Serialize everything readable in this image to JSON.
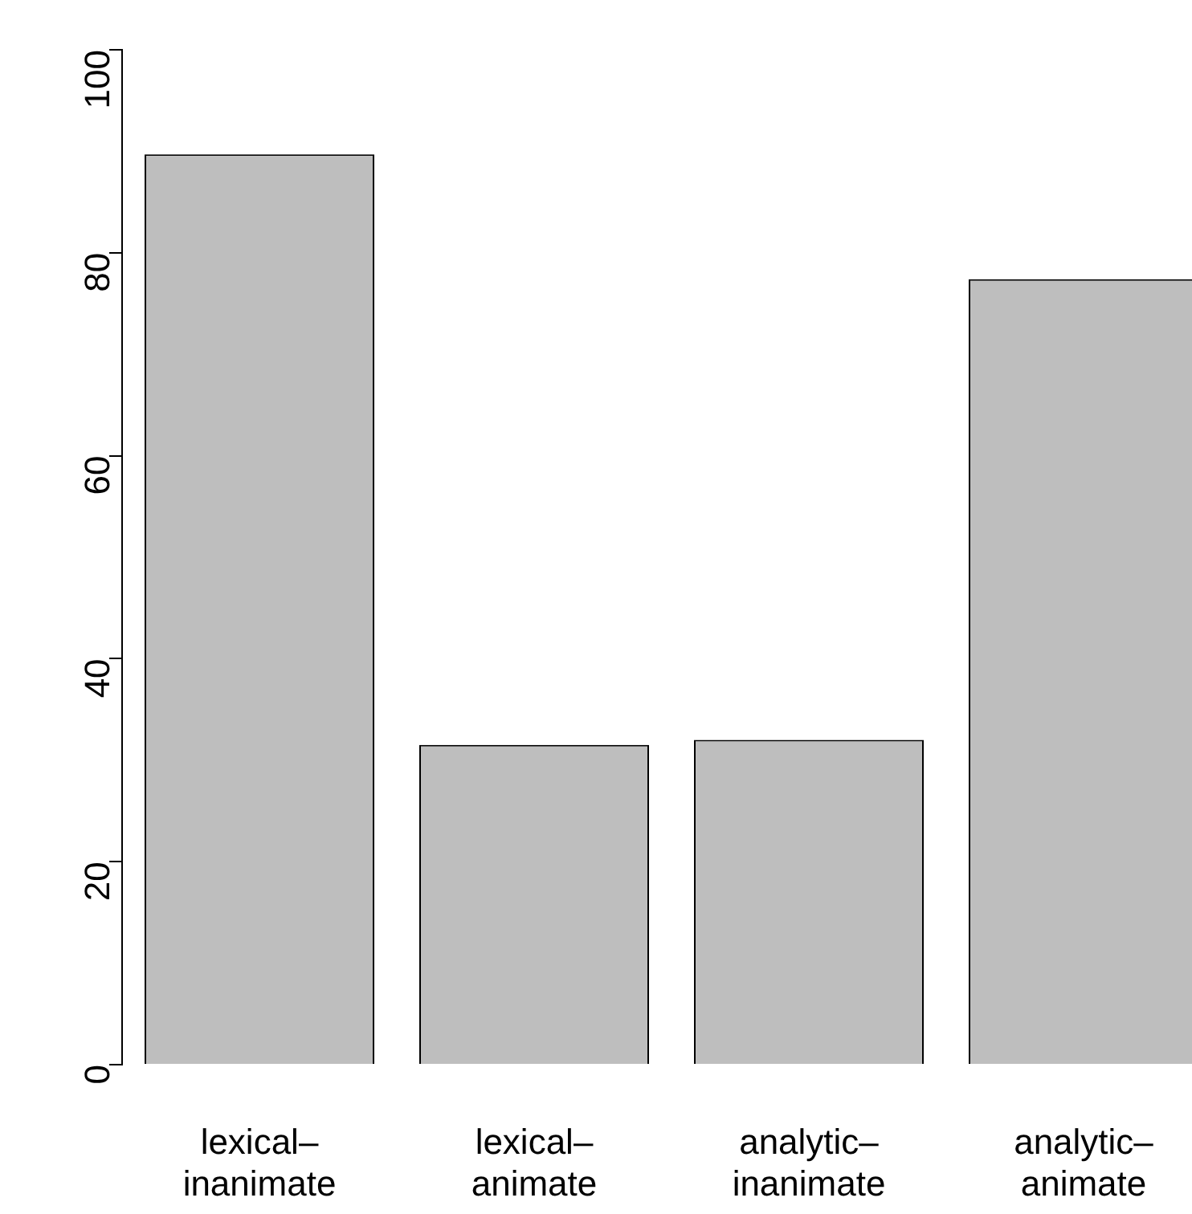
{
  "chart_data": {
    "type": "bar",
    "categories": [
      "lexical–inanimate",
      "lexical–animate",
      "analytic–inanimate",
      "analytic–animate"
    ],
    "values": [
      89.7,
      31.5,
      32.0,
      77.4
    ],
    "color": "#bebebe",
    "ylim": [
      0,
      100
    ],
    "yticks": [
      0,
      20,
      40,
      60,
      80,
      100
    ]
  }
}
